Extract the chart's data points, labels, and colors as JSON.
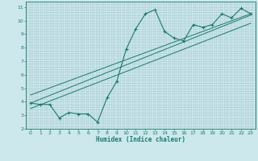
{
  "xlabel": "Humidex (Indice chaleur)",
  "ylabel": "",
  "bg_color": "#cce8ec",
  "grid_color": "#aaccd4",
  "line_color": "#1a7a6e",
  "xlim": [
    -0.5,
    23.5
  ],
  "ylim": [
    2,
    11.4
  ],
  "xticks": [
    0,
    1,
    2,
    3,
    4,
    5,
    6,
    7,
    8,
    9,
    10,
    11,
    12,
    13,
    14,
    15,
    16,
    17,
    18,
    19,
    20,
    21,
    22,
    23
  ],
  "yticks": [
    2,
    3,
    4,
    5,
    6,
    7,
    8,
    9,
    10,
    11
  ],
  "data_x": [
    0,
    1,
    2,
    3,
    4,
    5,
    6,
    7,
    8,
    9,
    10,
    11,
    12,
    13,
    14,
    15,
    16,
    17,
    18,
    19,
    20,
    21,
    22,
    23
  ],
  "data_y": [
    3.9,
    3.8,
    3.8,
    2.8,
    3.2,
    3.1,
    3.1,
    2.5,
    4.3,
    5.5,
    7.9,
    9.4,
    10.5,
    10.8,
    9.2,
    8.7,
    8.5,
    9.7,
    9.5,
    9.7,
    10.5,
    10.2,
    10.9,
    10.5
  ],
  "reg_line1_x": [
    0,
    23
  ],
  "reg_line1_y": [
    3.9,
    10.4
  ],
  "reg_line2_x": [
    0,
    23
  ],
  "reg_line2_y": [
    4.5,
    10.5
  ],
  "reg_line3_x": [
    0,
    23
  ],
  "reg_line3_y": [
    3.5,
    9.8
  ]
}
